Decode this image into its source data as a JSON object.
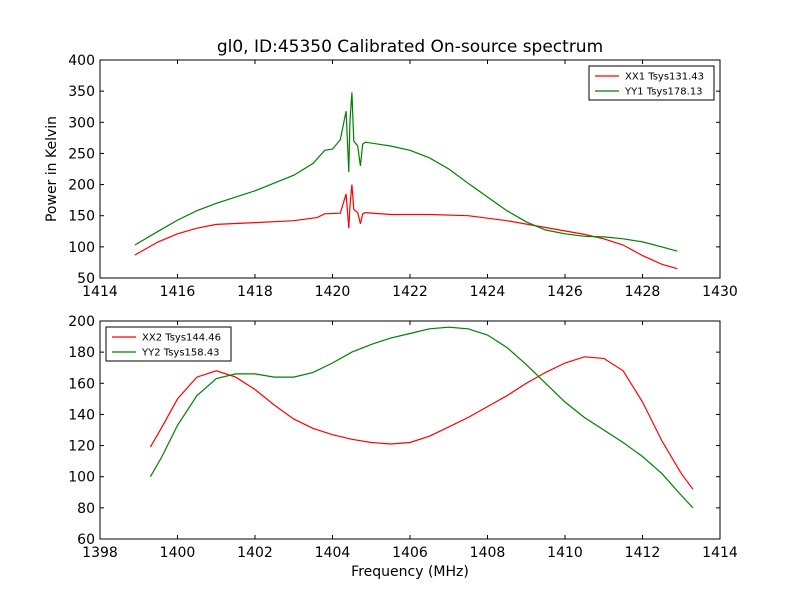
{
  "figure_title": "gl0, ID:45350 Calibrated On-source spectrum",
  "chart_data": [
    {
      "type": "line",
      "xlim": [
        1414,
        1430
      ],
      "ylim": [
        50,
        400
      ],
      "xticks": [
        1414,
        1416,
        1418,
        1420,
        1422,
        1424,
        1426,
        1428,
        1430
      ],
      "yticks": [
        50,
        100,
        150,
        200,
        250,
        300,
        350,
        400
      ],
      "xlabel": "",
      "ylabel": "Power in Kelvin",
      "legend_position": "top-right",
      "grid": false,
      "series": [
        {
          "name": "XX1 Tsys131.43",
          "color": "#ff0000",
          "x": [
            1414.9,
            1415.5,
            1416.0,
            1416.5,
            1417.0,
            1418.0,
            1419.0,
            1419.6,
            1419.8,
            1420.2,
            1420.35,
            1420.42,
            1420.45,
            1420.5,
            1420.55,
            1420.65,
            1420.72,
            1420.78,
            1420.85,
            1421.5,
            1422.5,
            1423.5,
            1424.5,
            1425.5,
            1426.5,
            1427.0,
            1427.5,
            1428.0,
            1428.5,
            1428.9
          ],
          "y": [
            87,
            108,
            121,
            130,
            136,
            139,
            142,
            147,
            153,
            154,
            185,
            130,
            165,
            200,
            160,
            155,
            137,
            153,
            155,
            152,
            152,
            150,
            142,
            131,
            120,
            113,
            103,
            86,
            72,
            65
          ]
        },
        {
          "name": "YY1 Tsys178.13",
          "color": "#008000",
          "x": [
            1414.9,
            1415.5,
            1416.0,
            1416.5,
            1417.0,
            1418.0,
            1419.0,
            1419.5,
            1419.8,
            1420.0,
            1420.2,
            1420.35,
            1420.42,
            1420.45,
            1420.5,
            1420.55,
            1420.65,
            1420.72,
            1420.78,
            1420.85,
            1421.5,
            1422.0,
            1422.5,
            1423.0,
            1423.5,
            1424.0,
            1424.5,
            1425.0,
            1425.5,
            1426.0,
            1426.5,
            1427.0,
            1427.5,
            1428.0,
            1428.5,
            1428.9
          ],
          "y": [
            103,
            125,
            143,
            158,
            170,
            190,
            215,
            234,
            255,
            257,
            272,
            318,
            220,
            300,
            348,
            270,
            262,
            230,
            265,
            268,
            262,
            255,
            243,
            225,
            202,
            180,
            158,
            140,
            127,
            121,
            117,
            116,
            113,
            108,
            100,
            93
          ]
        }
      ]
    },
    {
      "type": "line",
      "xlim": [
        1398,
        1414
      ],
      "ylim": [
        60,
        200
      ],
      "xticks": [
        1398,
        1400,
        1402,
        1404,
        1406,
        1408,
        1410,
        1412,
        1414
      ],
      "yticks": [
        60,
        80,
        100,
        120,
        140,
        160,
        180,
        200
      ],
      "xlabel": "Frequency (MHz)",
      "ylabel": "",
      "legend_position": "top-left",
      "grid": false,
      "series": [
        {
          "name": "XX2 Tsys144.46",
          "color": "#ff0000",
          "x": [
            1399.3,
            1399.6,
            1400.0,
            1400.5,
            1401.0,
            1401.5,
            1402.0,
            1402.5,
            1403.0,
            1403.5,
            1404.0,
            1404.5,
            1405.0,
            1405.5,
            1406.0,
            1406.5,
            1407.0,
            1407.5,
            1408.0,
            1408.5,
            1409.0,
            1409.5,
            1410.0,
            1410.5,
            1411.0,
            1411.5,
            1412.0,
            1412.5,
            1413.0,
            1413.3
          ],
          "y": [
            119,
            132,
            150,
            164,
            168,
            164,
            156,
            146,
            137,
            131,
            127,
            124,
            122,
            121,
            122,
            126,
            132,
            138,
            145,
            152,
            160,
            167,
            173,
            177,
            176,
            168,
            148,
            123,
            102,
            92
          ]
        },
        {
          "name": "YY2 Tsys158.43",
          "color": "#008000",
          "x": [
            1399.3,
            1399.6,
            1400.0,
            1400.5,
            1401.0,
            1401.5,
            1402.0,
            1402.5,
            1403.0,
            1403.5,
            1404.0,
            1404.5,
            1405.0,
            1405.5,
            1406.0,
            1406.5,
            1407.0,
            1407.5,
            1408.0,
            1408.5,
            1409.0,
            1409.5,
            1410.0,
            1410.5,
            1411.0,
            1411.5,
            1412.0,
            1412.5,
            1413.0,
            1413.3
          ],
          "y": [
            100,
            113,
            133,
            152,
            163,
            166,
            166,
            164,
            164,
            167,
            173,
            180,
            185,
            189,
            192,
            195,
            196,
            195,
            191,
            183,
            172,
            160,
            148,
            138,
            130,
            122,
            113,
            102,
            88,
            80
          ]
        }
      ]
    }
  ]
}
